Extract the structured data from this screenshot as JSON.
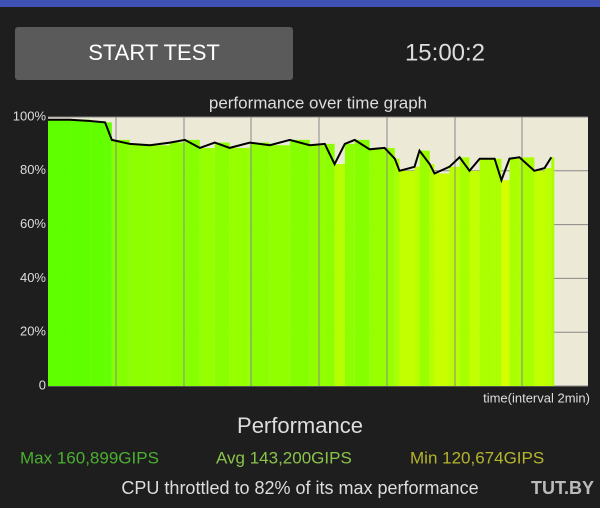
{
  "app": {
    "button": "START TEST",
    "timer": "15:00:2",
    "watermark": "TUT.BY"
  },
  "chart_data": {
    "type": "line",
    "title": "performance over time graph",
    "x_label": "time(interval 2min)",
    "x": [
      0,
      0.65,
      1.24,
      1.68,
      1.88,
      2.41,
      3,
      3.59,
      4.03,
      4.47,
      4.91,
      5.35,
      5.94,
      6.53,
      7.12,
      7.71,
      8.15,
      8.44,
      8.74,
      9.03,
      9.47,
      9.91,
      10.21,
      10.35,
      10.79,
      10.94,
      11.24,
      11.38,
      11.82,
      12.12,
      12.41,
      12.71,
      13.15,
      13.35,
      13.59,
      13.88,
      14.32,
      14.62,
      14.82
    ],
    "values": [
      99,
      99,
      98.5,
      98,
      91.5,
      90,
      89.5,
      90.5,
      91.5,
      88.5,
      90.5,
      88.5,
      90.5,
      89.5,
      91.5,
      89.5,
      90,
      82.5,
      90,
      91.5,
      88,
      88.5,
      84.5,
      80,
      81.5,
      87.5,
      82.5,
      79,
      81.5,
      85,
      80,
      84.5,
      84.5,
      76.5,
      84.5,
      85,
      80,
      81,
      85
    ],
    "color": "#000000",
    "xlim": [
      0,
      15.9
    ],
    "ylim": [
      0,
      100
    ],
    "yticks": [
      0,
      {
        "value": 20,
        "label": "20%"
      },
      {
        "value": 40,
        "label": "40%"
      },
      {
        "value": 60,
        "label": "60%"
      },
      {
        "value": 80,
        "label": "80%"
      },
      {
        "value": 100,
        "label": "100%"
      }
    ],
    "grid": true
  },
  "summary": {
    "title": "Performance",
    "max": "Max 160,899GIPS",
    "avg": "Avg 143,200GIPS",
    "min": "Min 120,674GIPS",
    "throttle": "CPU throttled to 82% of its max performance"
  }
}
